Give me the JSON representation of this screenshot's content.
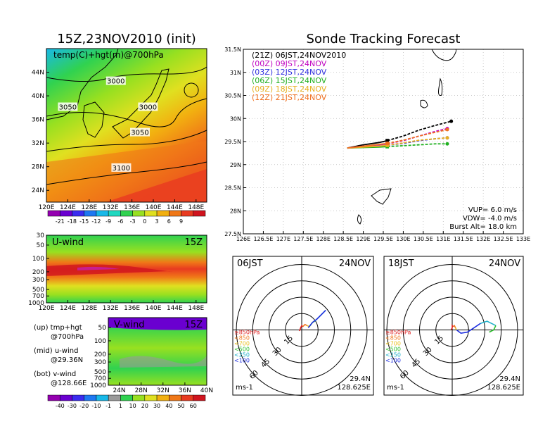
{
  "titles": {
    "init": "15Z,23NOV2010 (init)",
    "forecast": "Sonde Tracking Forecast"
  },
  "colors": {
    "bg": "#ffffff",
    "land_outline": "#000000",
    "grid": "#bbbbbb"
  },
  "chart_data": [
    {
      "id": "temp-hgt-map",
      "type": "heatmap",
      "title": "temp(C)+hgt(m)@700hPa",
      "x_ticks": [
        "120E",
        "124E",
        "128E",
        "132E",
        "136E",
        "140E",
        "144E",
        "148E"
      ],
      "y_ticks": [
        "24N",
        "28N",
        "32N",
        "36N",
        "40N",
        "44N"
      ],
      "xlim": [
        120,
        150
      ],
      "ylim": [
        22,
        48
      ],
      "contour_labels": [
        {
          "text": "3000",
          "lon": 133,
          "lat": 42.2
        },
        {
          "text": "3050",
          "lon": 124,
          "lat": 37.8
        },
        {
          "text": "3000",
          "lon": 139,
          "lat": 37.8
        },
        {
          "text": "3050",
          "lon": 137.5,
          "lat": 33.5
        },
        {
          "text": "3100",
          "lon": 134,
          "lat": 27.5
        }
      ],
      "colorbar": {
        "labels": [
          "-21",
          "-18",
          "-15",
          "-12",
          "-9",
          "-6",
          "-3",
          "0",
          "3",
          "6",
          "9"
        ],
        "colors": [
          "#9400b0",
          "#6a00d0",
          "#3b2cf0",
          "#1e78f2",
          "#18b8e8",
          "#20d8c0",
          "#30d250",
          "#98e020",
          "#e0e020",
          "#f2b010",
          "#f07818",
          "#e83a20",
          "#d0141e"
        ]
      }
    },
    {
      "id": "u-wind",
      "type": "heatmap",
      "title": "U-wind",
      "time_label": "15Z",
      "y_ticks": [
        "30",
        "50",
        "100",
        "200",
        "300",
        "500",
        "700",
        "1000"
      ],
      "x_ticks": [
        "120E",
        "124E",
        "128E",
        "132E",
        "136E",
        "140E",
        "144E",
        "148E"
      ],
      "xlim": [
        120,
        150
      ]
    },
    {
      "id": "v-wind",
      "type": "heatmap",
      "title": "V-wind",
      "time_label": "15Z",
      "y_ticks": [
        "50",
        "100",
        "200",
        "300",
        "500",
        "700",
        "1000"
      ],
      "x_ticks": [
        "24N",
        "28N",
        "32N",
        "36N",
        "40N"
      ],
      "xlim": [
        22,
        40
      ],
      "colorbar": {
        "labels": [
          "-40",
          "-30",
          "-20",
          "-10",
          "-1",
          "1",
          "10",
          "20",
          "30",
          "40",
          "50",
          "60"
        ],
        "colors": [
          "#9400b0",
          "#6a00d0",
          "#3b2cf0",
          "#1e78f2",
          "#18b8e8",
          "#9a9a9a",
          "#30d250",
          "#98e020",
          "#e0e020",
          "#f2b010",
          "#f07818",
          "#e83a20",
          "#d0141e"
        ]
      }
    },
    {
      "id": "track-map",
      "type": "line",
      "x_ticks": [
        "126E",
        "126.5E",
        "127E",
        "127.5E",
        "128E",
        "128.5E",
        "129E",
        "129.5E",
        "130E",
        "130.5E",
        "131E",
        "131.5E",
        "132E",
        "132.5E",
        "133E"
      ],
      "y_ticks": [
        "27.5N",
        "28N",
        "28.5N",
        "29N",
        "29.5N",
        "30N",
        "30.5N",
        "31N",
        "31.5N"
      ],
      "xlim": [
        126,
        133
      ],
      "ylim": [
        27.5,
        31.5
      ],
      "grid": true,
      "legend_position": "top-left",
      "series": [
        {
          "name": "(21Z)  06JST,24NOV2010",
          "color": "#000000",
          "lon": [
            128.6,
            129.0,
            129.4,
            129.6,
            130.0,
            130.4,
            130.8,
            131.2
          ],
          "lat": [
            29.36,
            29.43,
            29.48,
            29.52,
            29.62,
            29.75,
            29.85,
            29.94
          ]
        },
        {
          "name": "(00Z)  09JST,24NOV",
          "color": "#c000c0",
          "lon": [
            128.6,
            129.0,
            129.4,
            129.6,
            130.0,
            130.4,
            130.8,
            131.1
          ],
          "lat": [
            29.36,
            29.4,
            29.43,
            29.45,
            29.52,
            29.62,
            29.72,
            29.78
          ]
        },
        {
          "name": "(03Z)  12JST,24NOV",
          "color": "#3030e0",
          "lon": [
            128.6,
            129.0,
            129.4,
            129.6,
            130.0,
            130.4,
            130.8,
            131.1
          ],
          "lat": [
            29.36,
            29.38,
            29.4,
            29.42,
            29.46,
            29.52,
            29.56,
            29.58
          ]
        },
        {
          "name": "(06Z)  15JST,24NOV",
          "color": "#20b020",
          "lon": [
            128.6,
            129.0,
            129.4,
            129.6,
            130.0,
            130.4,
            130.8,
            131.1
          ],
          "lat": [
            29.36,
            29.37,
            29.38,
            29.39,
            29.41,
            29.43,
            29.45,
            29.45
          ]
        },
        {
          "name": "(09Z)  18JST,24NOV",
          "color": "#e8b020",
          "lon": [
            128.6,
            129.0,
            129.4,
            129.6,
            130.0,
            130.4,
            130.8,
            131.1
          ],
          "lat": [
            29.36,
            29.38,
            29.4,
            29.42,
            29.47,
            29.53,
            29.56,
            29.58
          ]
        },
        {
          "name": "(12Z)  21JST,24NOV",
          "color": "#f07020",
          "lon": [
            128.6,
            129.0,
            129.4,
            129.6,
            130.0,
            130.4,
            130.8,
            131.1
          ],
          "lat": [
            29.36,
            29.4,
            29.44,
            29.46,
            29.53,
            29.62,
            29.7,
            29.76
          ]
        }
      ],
      "annotations": {
        "vup": "VUP=  6.0  m/s",
        "vdw": "VDW=  -4.0  m/s",
        "burst": "Burst Alt=  18.0  km"
      }
    },
    {
      "id": "hodograph-06",
      "type": "line",
      "time_label": "06JST",
      "date_label": "24NOV",
      "ring_labels": [
        "15",
        "30",
        "45",
        "60"
      ],
      "units": "ms-1",
      "location": [
        "29.4N",
        "128.625E"
      ],
      "pressure_legend": [
        {
          "text": "≥850hPa",
          "color": "#e02020"
        },
        {
          "text": "<850",
          "color": "#f07820"
        },
        {
          "text": "<700",
          "color": "#e8c020"
        },
        {
          "text": "<500",
          "color": "#30c030"
        },
        {
          "text": "<250",
          "color": "#20b0c8"
        },
        {
          "text": "<100",
          "color": "#2030e0"
        }
      ],
      "series": [
        {
          "color": "#e02020",
          "u": [
            -2,
            -1,
            0,
            1
          ],
          "v": [
            -1,
            2,
            4,
            3
          ]
        },
        {
          "color": "#f07820",
          "u": [
            1,
            3,
            5
          ],
          "v": [
            3,
            5,
            4
          ]
        },
        {
          "color": "#e8c020",
          "u": [
            5,
            7
          ],
          "v": [
            4,
            3
          ]
        },
        {
          "color": "#30c030",
          "u": [
            7,
            10,
            12
          ],
          "v": [
            3,
            7,
            8
          ]
        },
        {
          "color": "#20b0c8",
          "u": [
            12,
            18,
            22
          ],
          "v": [
            8,
            14,
            18
          ]
        },
        {
          "color": "#2030e0",
          "u": [
            22,
            18,
            14,
            10,
            6
          ],
          "v": [
            18,
            14,
            10,
            7,
            2
          ]
        }
      ]
    },
    {
      "id": "hodograph-18",
      "type": "line",
      "time_label": "18JST",
      "date_label": "24NOV",
      "ring_labels": [
        "15",
        "30",
        "45",
        "60"
      ],
      "units": "ms-1",
      "location": [
        "29.4N",
        "128.625E"
      ],
      "pressure_legend": [
        {
          "text": "≥850hPa",
          "color": "#e02020"
        },
        {
          "text": "<850",
          "color": "#f07820"
        },
        {
          "text": "<700",
          "color": "#e8c020"
        },
        {
          "text": "<500",
          "color": "#30c030"
        },
        {
          "text": "<250",
          "color": "#20b0c8"
        },
        {
          "text": "<100",
          "color": "#2030e0"
        }
      ],
      "series": [
        {
          "color": "#e02020",
          "u": [
            -1,
            0,
            0,
            1
          ],
          "v": [
            0,
            2,
            4,
            3
          ]
        },
        {
          "color": "#f07820",
          "u": [
            1,
            2,
            3
          ],
          "v": [
            3,
            4,
            2
          ]
        },
        {
          "color": "#e8c020",
          "u": [
            3,
            4
          ],
          "v": [
            2,
            0
          ]
        },
        {
          "color": "#2030e0",
          "u": [
            4,
            8,
            14,
            20,
            26
          ],
          "v": [
            0,
            -3,
            -2,
            2,
            6
          ]
        },
        {
          "color": "#20b0c8",
          "u": [
            26,
            32,
            36,
            40
          ],
          "v": [
            6,
            8,
            6,
            4
          ]
        },
        {
          "color": "#30c030",
          "u": [
            40,
            38,
            34
          ],
          "v": [
            4,
            0,
            -2
          ]
        }
      ]
    }
  ],
  "side_legend": {
    "up_1": "(up)  tmp+hgt",
    "up_2": "@700hPa",
    "mid_1": "(mid)  u-wind",
    "mid_2": "@29.36N",
    "bot_1": "(bot)  v-wind",
    "bot_2": "@128.66E"
  }
}
